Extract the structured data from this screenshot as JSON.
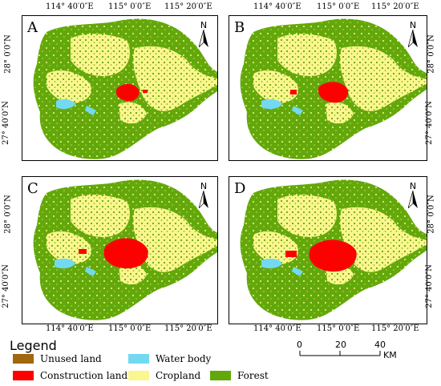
{
  "panels": [
    {
      "label": "A"
    },
    {
      "label": "B"
    },
    {
      "label": "C"
    },
    {
      "label": "D"
    }
  ],
  "north_label": "N",
  "coords": {
    "lon1": "114° 40′0″E",
    "lon2": "115° 0′0″E",
    "lon3": "115° 20′0″E",
    "lat1": "28° 0′0″N",
    "lat2": "27° 40′0″N"
  },
  "legend": {
    "title": "Legend",
    "items": [
      {
        "label": "Unused land",
        "color": "#a0670f"
      },
      {
        "label": "Water body",
        "color": "#73d9f2"
      },
      {
        "label": "Construction land",
        "color": "#ff0000"
      },
      {
        "label": "Cropland",
        "color": "#fbf68e"
      },
      {
        "label": "Forest",
        "color": "#63a80b"
      }
    ]
  },
  "scale_bar": {
    "ticks": [
      "0",
      "20",
      "40"
    ],
    "unit": "KM"
  },
  "colors": {
    "forest": "#63a80b",
    "cropland": "#fbf68e",
    "construction": "#ff0000",
    "water": "#73d9f2",
    "unused": "#a0670f"
  }
}
